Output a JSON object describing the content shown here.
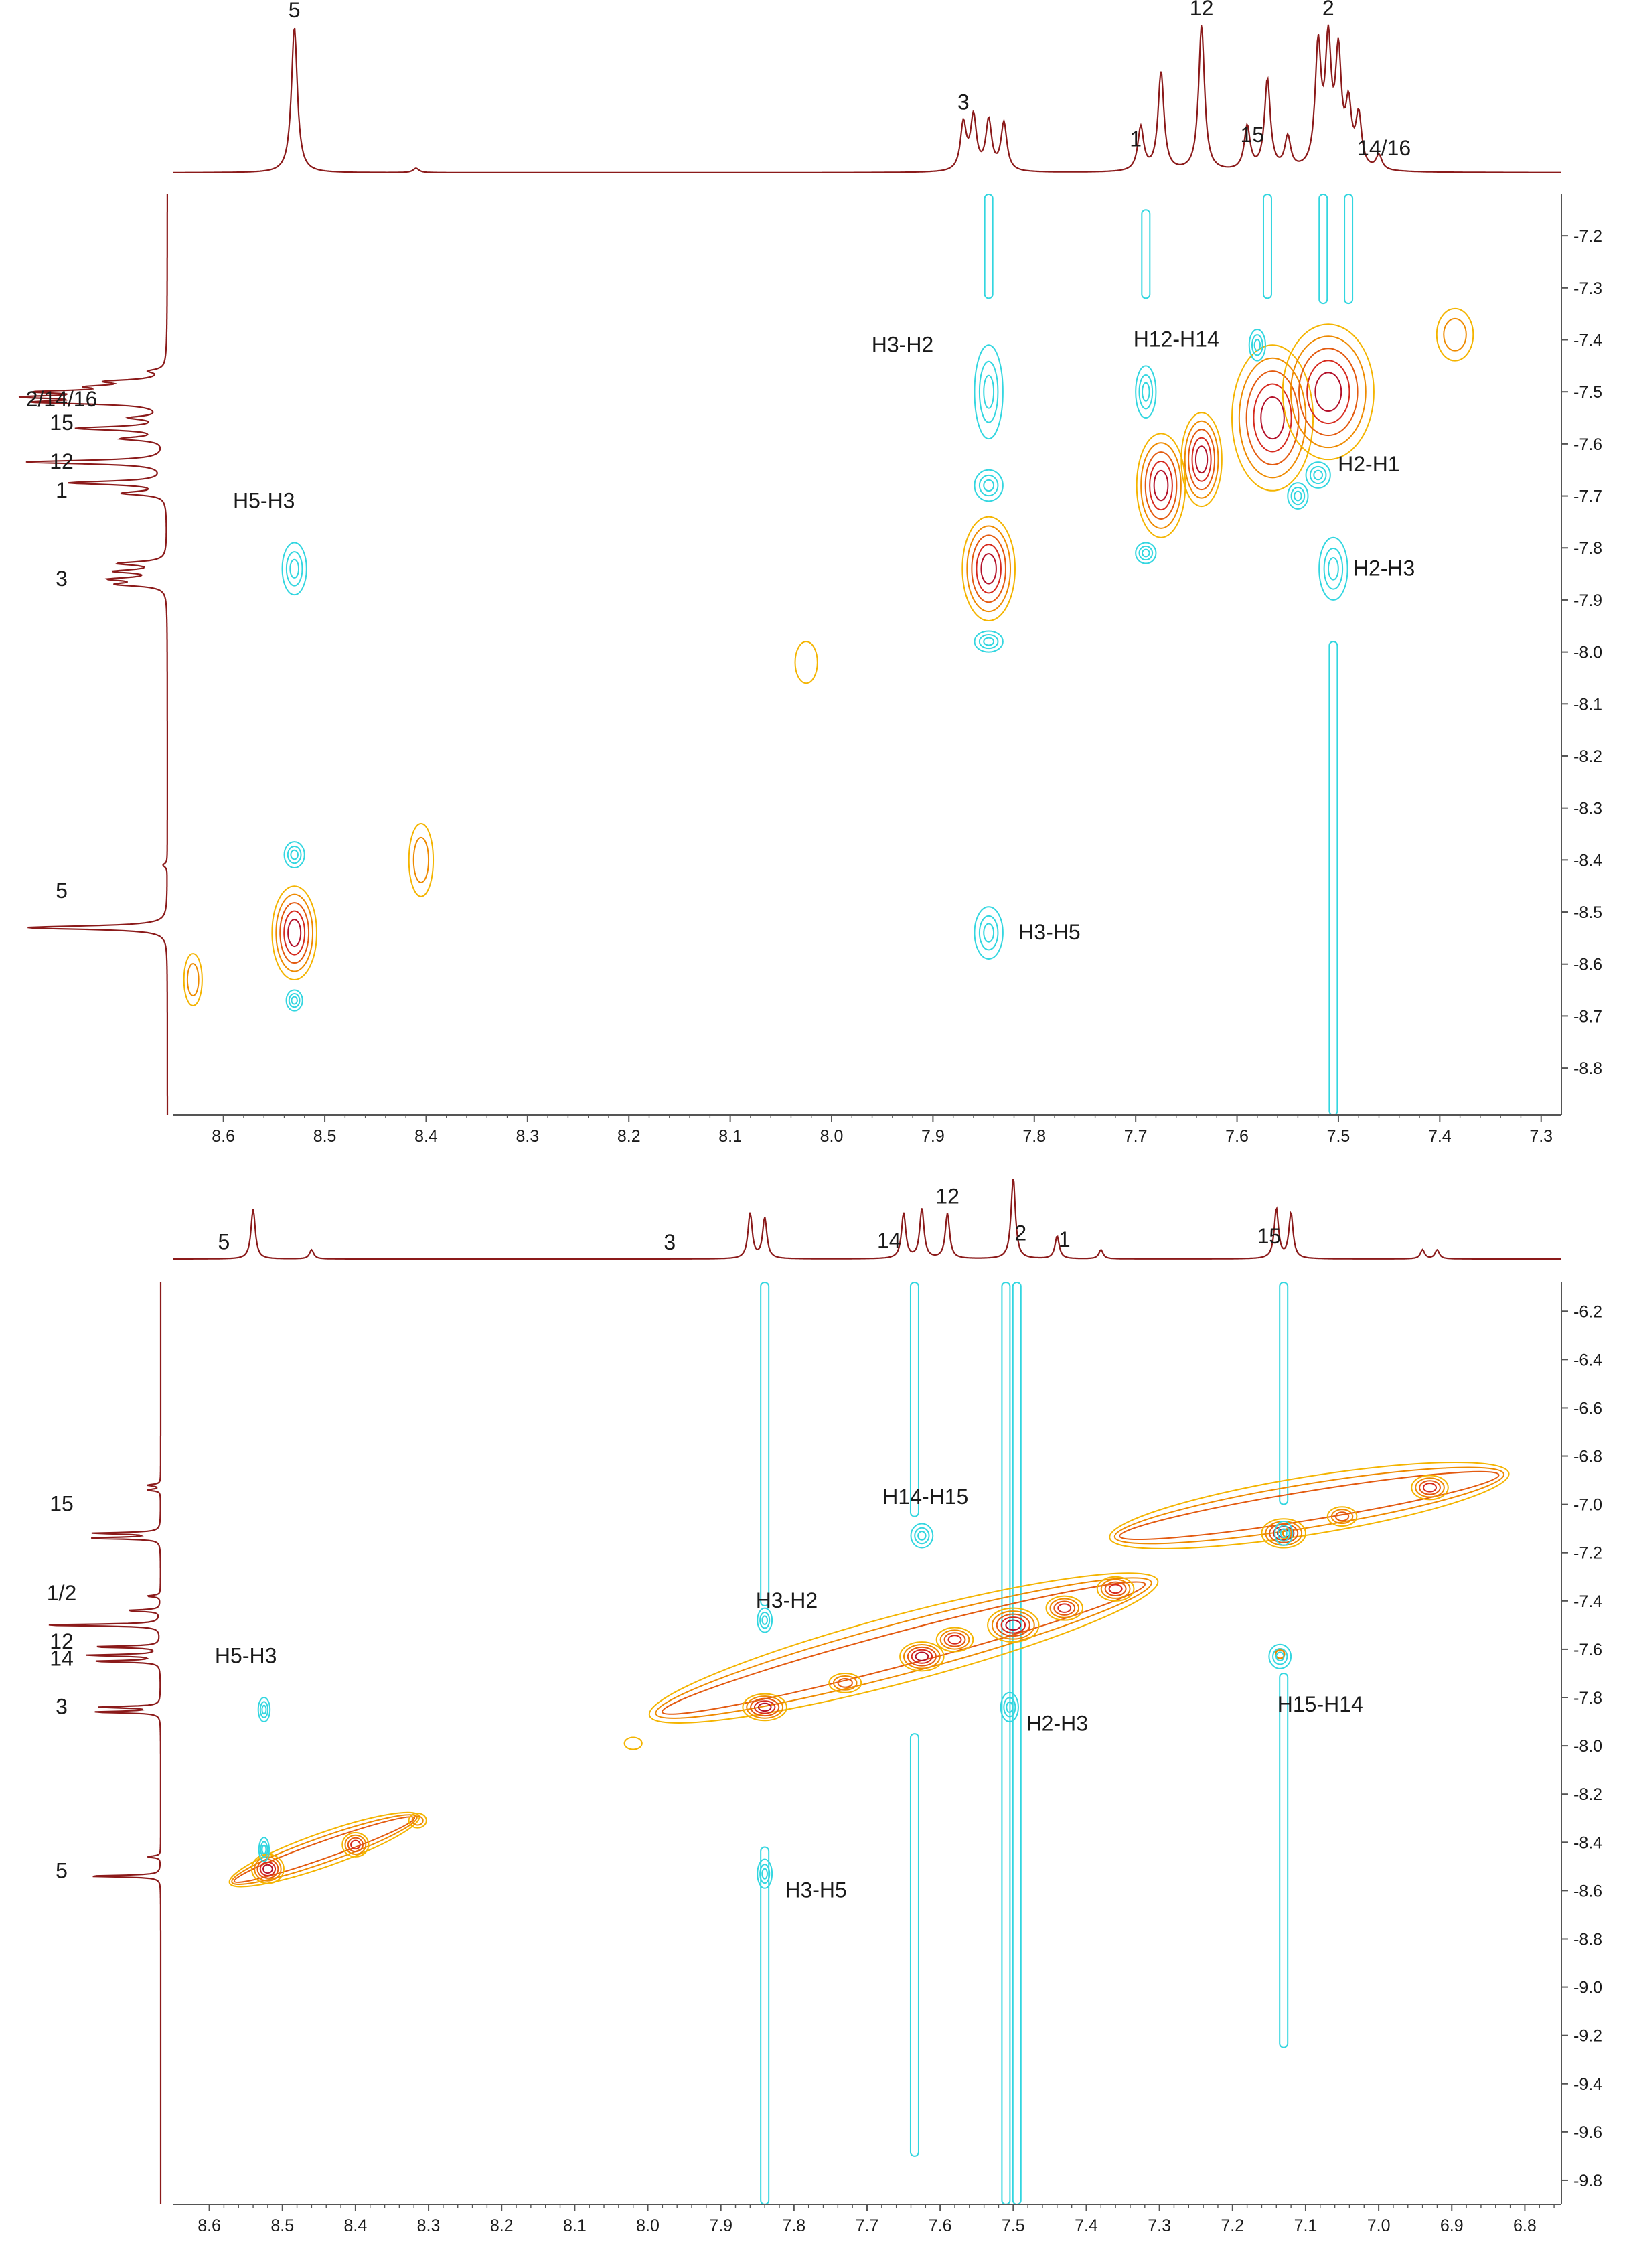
{
  "colors": {
    "background": "#ffffff",
    "spectrum": "#8b1a1a",
    "axis": "#555555",
    "positive_levels": [
      "#f4b400",
      "#ee8a00",
      "#e35a10",
      "#d62a1e",
      "#b3112a"
    ],
    "negative": "#33d6e0"
  },
  "chart_data": [
    {
      "type": "heatmap",
      "title": "",
      "xlabel": "",
      "ylabel": "",
      "xlim": [
        8.65,
        7.28
      ],
      "ylim": [
        7.12,
        8.89
      ],
      "x_ticks": [
        "8.6",
        "8.5",
        "8.4",
        "8.3",
        "8.2",
        "8.1",
        "8.0",
        "7.9",
        "7.8",
        "7.7",
        "7.6",
        "7.5",
        "7.4",
        "7.3"
      ],
      "x_tick_values": [
        8.6,
        8.5,
        8.4,
        8.3,
        8.2,
        8.1,
        8.0,
        7.9,
        7.8,
        7.7,
        7.6,
        7.5,
        7.4,
        7.3
      ],
      "y_ticks": [
        "7.2",
        "7.3",
        "7.4",
        "7.5",
        "7.6",
        "7.7",
        "7.8",
        "7.9",
        "8.0",
        "8.1",
        "8.2",
        "8.3",
        "8.4",
        "8.5",
        "8.6",
        "8.7",
        "8.8"
      ],
      "y_tick_values": [
        7.2,
        7.3,
        7.4,
        7.5,
        7.6,
        7.7,
        7.8,
        7.9,
        8.0,
        8.1,
        8.2,
        8.3,
        8.4,
        8.5,
        8.6,
        8.7,
        8.8
      ],
      "projection_peaks": [
        {
          "label": "5",
          "ppm": 8.53,
          "height": 1.0
        },
        {
          "label": "",
          "ppm": 8.41,
          "height": 0.03
        },
        {
          "label": "",
          "ppm": 7.87,
          "height": 0.32
        },
        {
          "label": "3",
          "ppm": 7.86,
          "height": 0.36
        },
        {
          "label": "",
          "ppm": 7.845,
          "height": 0.34
        },
        {
          "label": "",
          "ppm": 7.83,
          "height": 0.33
        },
        {
          "label": "1",
          "ppm": 7.695,
          "height": 0.3
        },
        {
          "label": "",
          "ppm": 7.675,
          "height": 0.68
        },
        {
          "label": "12",
          "ppm": 7.635,
          "height": 1.0
        },
        {
          "label": "",
          "ppm": 7.59,
          "height": 0.3
        },
        {
          "label": "15",
          "ppm": 7.57,
          "height": 0.62
        },
        {
          "label": "",
          "ppm": 7.55,
          "height": 0.22
        },
        {
          "label": "",
          "ppm": 7.52,
          "height": 0.82
        },
        {
          "label": "2",
          "ppm": 7.51,
          "height": 0.82
        },
        {
          "label": "",
          "ppm": 7.5,
          "height": 0.75
        },
        {
          "label": "",
          "ppm": 7.49,
          "height": 0.4
        },
        {
          "label": "14/16",
          "ppm": 7.48,
          "height": 0.35
        },
        {
          "label": "",
          "ppm": 7.46,
          "height": 0.1
        }
      ],
      "projection_labels": [
        {
          "text": "5",
          "ppm": 8.53
        },
        {
          "text": "3",
          "ppm": 7.87
        },
        {
          "text": "1",
          "ppm": 7.7
        },
        {
          "text": "12",
          "ppm": 7.635
        },
        {
          "text": "15",
          "ppm": 7.585
        },
        {
          "text": "2",
          "ppm": 7.51
        },
        {
          "text": "14/16",
          "ppm": 7.455
        }
      ],
      "left_labels": [
        {
          "text": "2/14/16",
          "ppm": 7.515
        },
        {
          "text": "15",
          "ppm": 7.56
        },
        {
          "text": "12",
          "ppm": 7.635
        },
        {
          "text": "1",
          "ppm": 7.69
        },
        {
          "text": "3",
          "ppm": 7.86
        },
        {
          "text": "5",
          "ppm": 8.46
        }
      ],
      "diagonal_peaks": [
        {
          "x": 8.53,
          "y": 8.54,
          "rx": 0.022,
          "ry": 0.09,
          "levels": 5
        },
        {
          "x": 8.63,
          "y": 8.63,
          "rx": 0.009,
          "ry": 0.05,
          "levels": 2
        },
        {
          "x": 8.405,
          "y": 8.4,
          "rx": 0.012,
          "ry": 0.07,
          "levels": 2
        },
        {
          "x": 8.025,
          "y": 8.02,
          "rx": 0.011,
          "ry": 0.04,
          "levels": 1
        },
        {
          "x": 7.845,
          "y": 7.84,
          "rx": 0.026,
          "ry": 0.1,
          "levels": 5
        },
        {
          "x": 7.675,
          "y": 7.68,
          "rx": 0.024,
          "ry": 0.1,
          "levels": 5
        },
        {
          "x": 7.635,
          "y": 7.63,
          "rx": 0.02,
          "ry": 0.09,
          "levels": 5
        },
        {
          "x": 7.565,
          "y": 7.55,
          "rx": 0.04,
          "ry": 0.14,
          "levels": 5
        },
        {
          "x": 7.51,
          "y": 7.5,
          "rx": 0.045,
          "ry": 0.13,
          "levels": 5
        },
        {
          "x": 7.385,
          "y": 7.39,
          "rx": 0.018,
          "ry": 0.05,
          "levels": 2
        }
      ],
      "negative_peaks": [
        {
          "x": 7.845,
          "y": 7.5,
          "rx": 0.014,
          "ry": 0.09
        },
        {
          "x": 7.845,
          "y": 7.68,
          "rx": 0.014,
          "ry": 0.03
        },
        {
          "x": 7.845,
          "y": 7.98,
          "rx": 0.014,
          "ry": 0.02
        },
        {
          "x": 7.845,
          "y": 8.54,
          "rx": 0.014,
          "ry": 0.05
        },
        {
          "x": 8.53,
          "y": 7.84,
          "rx": 0.012,
          "ry": 0.05
        },
        {
          "x": 8.53,
          "y": 8.39,
          "rx": 0.01,
          "ry": 0.025
        },
        {
          "x": 8.53,
          "y": 8.67,
          "rx": 0.008,
          "ry": 0.02
        },
        {
          "x": 7.69,
          "y": 7.5,
          "rx": 0.01,
          "ry": 0.05
        },
        {
          "x": 7.69,
          "y": 7.81,
          "rx": 0.01,
          "ry": 0.02
        },
        {
          "x": 7.505,
          "y": 7.84,
          "rx": 0.014,
          "ry": 0.06
        },
        {
          "x": 7.52,
          "y": 7.66,
          "rx": 0.012,
          "ry": 0.025
        },
        {
          "x": 7.58,
          "y": 7.41,
          "rx": 0.008,
          "ry": 0.03
        },
        {
          "x": 7.54,
          "y": 7.7,
          "rx": 0.01,
          "ry": 0.025
        }
      ],
      "negative_streaks": [
        {
          "x": 7.845,
          "y_from": 7.12,
          "y_to": 7.32
        },
        {
          "x": 7.69,
          "y_from": 7.15,
          "y_to": 7.32
        },
        {
          "x": 7.57,
          "y_from": 7.12,
          "y_to": 7.32
        },
        {
          "x": 7.515,
          "y_from": 7.12,
          "y_to": 7.33
        },
        {
          "x": 7.49,
          "y_from": 7.12,
          "y_to": 7.33
        },
        {
          "x": 7.505,
          "y_from": 7.98,
          "y_to": 8.89
        }
      ],
      "annotations": [
        {
          "text": "H3-H2",
          "x": 7.93,
          "y": 7.41
        },
        {
          "text": "H12-H14",
          "x": 7.66,
          "y": 7.4
        },
        {
          "text": "H2-H1",
          "x": 7.47,
          "y": 7.64
        },
        {
          "text": "H5-H3",
          "x": 8.56,
          "y": 7.71
        },
        {
          "text": "H2-H3",
          "x": 7.455,
          "y": 7.84
        },
        {
          "text": "H3-H5",
          "x": 7.785,
          "y": 8.54
        }
      ]
    },
    {
      "type": "heatmap",
      "title": "",
      "xlabel": "",
      "ylabel": "",
      "xlim": [
        8.65,
        6.75
      ],
      "ylim": [
        6.08,
        9.9
      ],
      "x_ticks": [
        "8.6",
        "8.5",
        "8.4",
        "8.3",
        "8.2",
        "8.1",
        "8.0",
        "7.9",
        "7.8",
        "7.7",
        "7.6",
        "7.5",
        "7.4",
        "7.3",
        "7.2",
        "7.1",
        "7.0",
        "6.9",
        "6.8"
      ],
      "x_tick_values": [
        8.6,
        8.5,
        8.4,
        8.3,
        8.2,
        8.1,
        8.0,
        7.9,
        7.8,
        7.7,
        7.6,
        7.5,
        7.4,
        7.3,
        7.2,
        7.1,
        7.0,
        6.9,
        6.8
      ],
      "y_ticks": [
        "6.2",
        "6.4",
        "6.6",
        "6.8",
        "7.0",
        "7.2",
        "7.4",
        "7.6",
        "7.8",
        "8.0",
        "8.2",
        "8.4",
        "8.6",
        "8.8",
        "9.0",
        "9.2",
        "9.4",
        "9.6",
        "9.8"
      ],
      "y_tick_values": [
        6.2,
        6.4,
        6.6,
        6.8,
        7.0,
        7.2,
        7.4,
        7.6,
        7.8,
        8.0,
        8.2,
        8.4,
        8.6,
        8.8,
        9.0,
        9.2,
        9.4,
        9.6,
        9.8
      ],
      "projection_peaks": [
        {
          "label": "5",
          "ppm": 8.54,
          "height": 0.55
        },
        {
          "label": "",
          "ppm": 8.46,
          "height": 0.1
        },
        {
          "label": "3",
          "ppm": 7.86,
          "height": 0.5
        },
        {
          "label": "",
          "ppm": 7.84,
          "height": 0.45
        },
        {
          "label": "14",
          "ppm": 7.65,
          "height": 0.5
        },
        {
          "label": "",
          "ppm": 7.625,
          "height": 0.55
        },
        {
          "label": "12",
          "ppm": 7.59,
          "height": 0.5
        },
        {
          "label": "2",
          "ppm": 7.5,
          "height": 0.9
        },
        {
          "label": "1",
          "ppm": 7.44,
          "height": 0.25
        },
        {
          "label": "",
          "ppm": 7.38,
          "height": 0.1
        },
        {
          "label": "15",
          "ppm": 7.14,
          "height": 0.55
        },
        {
          "label": "",
          "ppm": 7.12,
          "height": 0.5
        },
        {
          "label": "",
          "ppm": 6.94,
          "height": 0.1
        },
        {
          "label": "",
          "ppm": 6.92,
          "height": 0.1
        }
      ],
      "projection_labels": [
        {
          "text": "5",
          "ppm": 8.58
        },
        {
          "text": "3",
          "ppm": 7.97
        },
        {
          "text": "14",
          "ppm": 7.67
        },
        {
          "text": "12",
          "ppm": 7.59
        },
        {
          "text": "2",
          "ppm": 7.49
        },
        {
          "text": "1",
          "ppm": 7.43
        },
        {
          "text": "15",
          "ppm": 7.15
        }
      ],
      "left_labels": [
        {
          "text": "15",
          "ppm": 7.0
        },
        {
          "text": "1/2",
          "ppm": 7.37
        },
        {
          "text": "12",
          "ppm": 7.57
        },
        {
          "text": "14",
          "ppm": 7.64
        },
        {
          "text": "3",
          "ppm": 7.84
        },
        {
          "text": "5",
          "ppm": 8.52
        }
      ],
      "diagonal_ridges": [
        {
          "x1": 8.555,
          "y1": 8.55,
          "x2": 8.33,
          "y2": 8.31,
          "w": 0.07
        },
        {
          "x1": 7.98,
          "y1": 7.86,
          "x2": 7.32,
          "y2": 7.33,
          "w": 0.14
        },
        {
          "x1": 7.35,
          "y1": 7.13,
          "x2": 6.84,
          "y2": 6.88,
          "w": 0.12
        }
      ],
      "diagonal_peaks": [
        {
          "x": 8.52,
          "y": 8.51,
          "rx": 0.022,
          "ry": 0.06,
          "levels": 5
        },
        {
          "x": 8.4,
          "y": 8.41,
          "rx": 0.018,
          "ry": 0.05,
          "levels": 4
        },
        {
          "x": 8.315,
          "y": 8.31,
          "rx": 0.012,
          "ry": 0.03,
          "levels": 2
        },
        {
          "x": 8.02,
          "y": 7.99,
          "rx": 0.012,
          "ry": 0.025,
          "levels": 1
        },
        {
          "x": 7.84,
          "y": 7.84,
          "rx": 0.03,
          "ry": 0.055,
          "levels": 5
        },
        {
          "x": 7.73,
          "y": 7.74,
          "rx": 0.022,
          "ry": 0.04,
          "levels": 3
        },
        {
          "x": 7.625,
          "y": 7.63,
          "rx": 0.03,
          "ry": 0.06,
          "levels": 5
        },
        {
          "x": 7.58,
          "y": 7.56,
          "rx": 0.025,
          "ry": 0.05,
          "levels": 4
        },
        {
          "x": 7.5,
          "y": 7.5,
          "rx": 0.035,
          "ry": 0.07,
          "levels": 5
        },
        {
          "x": 7.43,
          "y": 7.43,
          "rx": 0.025,
          "ry": 0.05,
          "levels": 4
        },
        {
          "x": 7.36,
          "y": 7.35,
          "rx": 0.025,
          "ry": 0.05,
          "levels": 4
        },
        {
          "x": 7.13,
          "y": 7.12,
          "rx": 0.03,
          "ry": 0.06,
          "levels": 5
        },
        {
          "x": 7.05,
          "y": 7.05,
          "rx": 0.02,
          "ry": 0.04,
          "levels": 3
        },
        {
          "x": 6.93,
          "y": 6.93,
          "rx": 0.025,
          "ry": 0.05,
          "levels": 4
        }
      ],
      "small_positive": [
        {
          "x": 7.125,
          "y": 7.12,
          "r": 0.006
        },
        {
          "x": 7.135,
          "y": 7.62,
          "r": 0.006
        }
      ],
      "negative_peaks": [
        {
          "x": 8.525,
          "y": 7.85,
          "rx": 0.008,
          "ry": 0.05
        },
        {
          "x": 8.525,
          "y": 8.43,
          "rx": 0.007,
          "ry": 0.05
        },
        {
          "x": 7.84,
          "y": 7.48,
          "rx": 0.01,
          "ry": 0.05
        },
        {
          "x": 7.84,
          "y": 8.53,
          "rx": 0.01,
          "ry": 0.06
        },
        {
          "x": 7.625,
          "y": 7.13,
          "rx": 0.015,
          "ry": 0.05
        },
        {
          "x": 7.505,
          "y": 7.84,
          "rx": 0.012,
          "ry": 0.06
        },
        {
          "x": 7.135,
          "y": 7.63,
          "rx": 0.015,
          "ry": 0.05
        },
        {
          "x": 7.13,
          "y": 7.12,
          "rx": 0.012,
          "ry": 0.05
        }
      ],
      "negative_streaks": [
        {
          "x": 7.84,
          "y_from": 6.08,
          "y_to": 7.42
        },
        {
          "x": 7.84,
          "y_from": 8.42,
          "y_to": 9.9
        },
        {
          "x": 7.635,
          "y_from": 6.08,
          "y_to": 7.05
        },
        {
          "x": 7.635,
          "y_from": 7.95,
          "y_to": 9.7
        },
        {
          "x": 7.51,
          "y_from": 6.08,
          "y_to": 9.9
        },
        {
          "x": 7.495,
          "y_from": 6.08,
          "y_to": 9.9
        },
        {
          "x": 7.13,
          "y_from": 6.08,
          "y_to": 7.0
        },
        {
          "x": 7.13,
          "y_from": 7.7,
          "y_to": 9.25
        }
      ],
      "annotations": [
        {
          "text": "H14-H15",
          "x": 7.62,
          "y": 6.97
        },
        {
          "text": "H3-H2",
          "x": 7.81,
          "y": 7.4
        },
        {
          "text": "H5-H3",
          "x": 8.55,
          "y": 7.63
        },
        {
          "text": "H2-H3",
          "x": 7.44,
          "y": 7.91
        },
        {
          "text": "H15-H14",
          "x": 7.08,
          "y": 7.83
        },
        {
          "text": "H3-H5",
          "x": 7.77,
          "y": 8.6
        }
      ]
    }
  ]
}
